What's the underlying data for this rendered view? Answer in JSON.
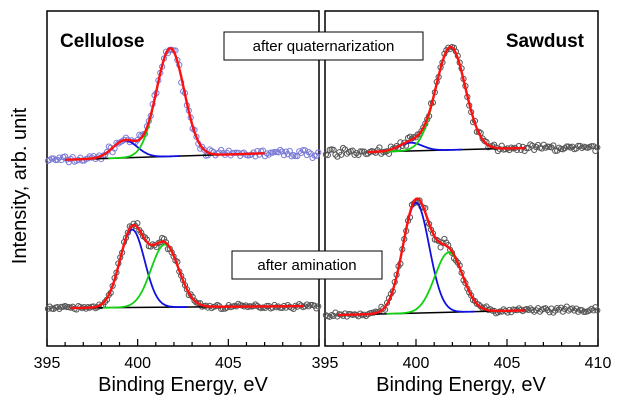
{
  "figure": {
    "ylabel": "Intensity, arb. unit",
    "annotations": [
      "after quaternarization",
      "after amination"
    ]
  },
  "colors": {
    "data_points_top_left": "#7b7bd6",
    "data_points_other": "#555555",
    "envelope": "#ff1010",
    "component_1": "#1010e0",
    "component_2": "#10d010",
    "baseline": "#000000"
  },
  "chart_data": [
    {
      "type": "scatter",
      "title": "Cellulose",
      "xlabel": "Binding Energy, eV",
      "xlim": [
        395,
        410
      ],
      "xticks": [
        395,
        400,
        405
      ],
      "ylabel": "Intensity, arb. unit",
      "y_ticks_shown": false,
      "spectra": [
        {
          "label": "after quaternarization",
          "baseline": [
            [
              396,
              0.28
            ],
            [
              407,
              0.34
            ]
          ],
          "components": [
            {
              "type": "gaussian",
              "center": 399.3,
              "height": 0.16,
              "fwhm": 1.6,
              "color": "blue"
            },
            {
              "type": "gaussian",
              "center": 401.8,
              "height": 1.0,
              "fwhm": 1.8,
              "color": "green"
            }
          ],
          "envelope": "sum",
          "data_points": "noisy measured points, 395-410 eV"
        },
        {
          "label": "after amination",
          "baseline": [
            [
              396.3,
              0.0
            ],
            [
              409.2,
              0.02
            ]
          ],
          "components": [
            {
              "type": "gaussian",
              "center": 399.7,
              "height": 0.82,
              "fwhm": 1.6,
              "color": "blue"
            },
            {
              "type": "gaussian",
              "center": 401.5,
              "height": 0.66,
              "fwhm": 1.8,
              "color": "green"
            }
          ],
          "envelope": "sum",
          "data_points": "noisy measured points, 395-410 eV"
        }
      ]
    },
    {
      "type": "scatter",
      "title": "Sawdust",
      "xlabel": "Binding Energy, eV",
      "xlim": [
        395,
        410
      ],
      "xticks": [
        395,
        400,
        405,
        410
      ],
      "spectra": [
        {
          "label": "after quaternarization",
          "baseline": [
            [
              397.3,
              0.3
            ],
            [
              406.0,
              0.34
            ]
          ],
          "components": [
            {
              "type": "gaussian",
              "center": 399.7,
              "height": 0.08,
              "fwhm": 1.5,
              "color": "blue"
            },
            {
              "type": "gaussian",
              "center": 401.9,
              "height": 1.0,
              "fwhm": 1.9,
              "color": "green"
            }
          ],
          "envelope": "sum",
          "data_points": "noisy measured points, 395-410 eV"
        },
        {
          "label": "after amination",
          "baseline": [
            [
              395.7,
              0.0
            ],
            [
              406.0,
              0.04
            ]
          ],
          "components": [
            {
              "type": "gaussian",
              "center": 400.0,
              "height": 0.96,
              "fwhm": 1.7,
              "color": "blue"
            },
            {
              "type": "gaussian",
              "center": 401.8,
              "height": 0.52,
              "fwhm": 1.8,
              "color": "green"
            }
          ],
          "envelope": "sum",
          "data_points": "noisy measured points, 395-410 eV"
        }
      ]
    }
  ]
}
